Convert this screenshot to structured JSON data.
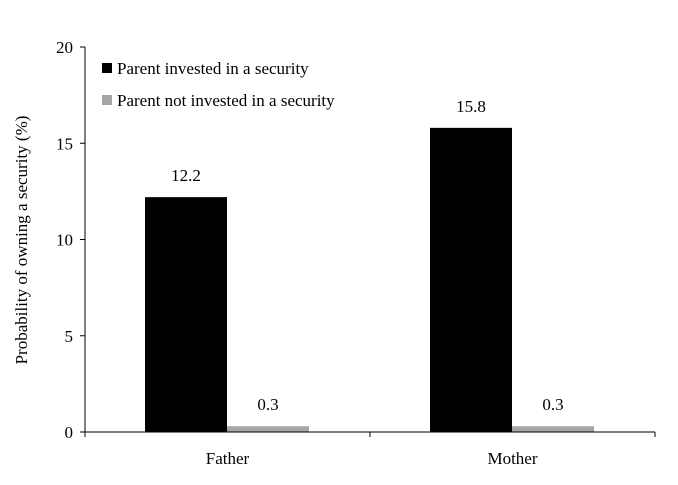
{
  "chart_data": {
    "type": "bar",
    "title": "",
    "xlabel": "",
    "ylabel": "Probability of owning a security (%)",
    "categories": [
      "Father",
      "Mother"
    ],
    "ylim": [
      0,
      20
    ],
    "yticks": [
      "0",
      "5",
      "10",
      "15",
      "20"
    ],
    "series": [
      {
        "name": "Parent invested in a security",
        "values": [
          12.2,
          15.8
        ],
        "labels": [
          "12.2",
          "15.8"
        ],
        "color": "#000000"
      },
      {
        "name": "Parent not invested in a security",
        "values": [
          0.3,
          0.3
        ],
        "labels": [
          "0.3",
          "0.3"
        ],
        "color": "#a6a6a6"
      }
    ],
    "legend_position": "top-left",
    "grid": false
  }
}
